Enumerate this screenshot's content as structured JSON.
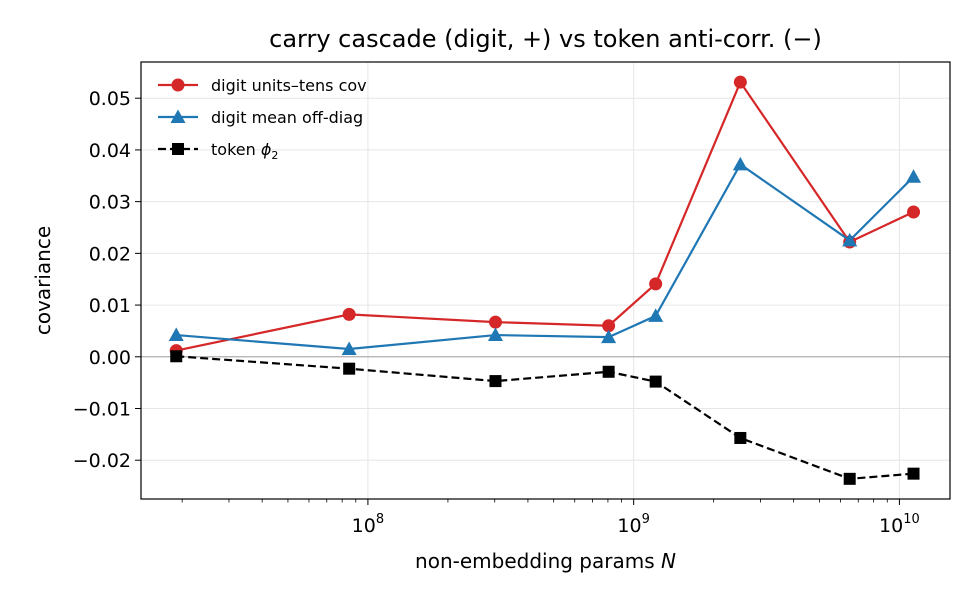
{
  "chart_data": {
    "type": "line",
    "title": "carry cascade (digit, +) vs token anti-corr. (−)",
    "xlabel": "non-embedding params N",
    "ylabel": "covariance",
    "x_scale": "log",
    "xlim": [
      14000000,
      15500000000
    ],
    "ylim": [
      -0.0275,
      0.057
    ],
    "grid": true,
    "legend_position": "upper-left",
    "x": [
      19000000,
      85000000,
      302000000,
      805000000,
      1210000000,
      2520000000,
      6500000000,
      11300000000
    ],
    "x_ticks": [
      {
        "value": 100000000,
        "base": "10",
        "exp": "8"
      },
      {
        "value": 1000000000,
        "base": "10",
        "exp": "9"
      },
      {
        "value": 10000000000,
        "base": "10",
        "exp": "10"
      }
    ],
    "y_ticks": [
      {
        "value": 0.05,
        "label": "0.05"
      },
      {
        "value": 0.04,
        "label": "0.04"
      },
      {
        "value": 0.03,
        "label": "0.03"
      },
      {
        "value": 0.02,
        "label": "0.02"
      },
      {
        "value": 0.01,
        "label": "0.01"
      },
      {
        "value": 0.0,
        "label": "0.00"
      },
      {
        "value": -0.01,
        "label": "−0.01"
      },
      {
        "value": -0.02,
        "label": "−0.02"
      }
    ],
    "series": [
      {
        "name": "digit units–tens cov",
        "color": "#d62728",
        "marker": "circle",
        "dash": "solid",
        "values": [
          0.0012,
          0.0082,
          0.0067,
          0.006,
          0.0141,
          0.0531,
          0.0222,
          0.028
        ]
      },
      {
        "name": "digit mean off-diag",
        "color": "#1f77b4",
        "marker": "triangle",
        "dash": "solid",
        "values": [
          0.0042,
          0.0015,
          0.0042,
          0.0038,
          0.0079,
          0.0372,
          0.0225,
          0.0348
        ]
      },
      {
        "name": "token ϕ₂",
        "color": "#000000",
        "marker": "square",
        "dash": "dashed",
        "values": [
          0.0001,
          -0.0023,
          -0.0047,
          -0.0029,
          -0.0048,
          -0.0157,
          -0.0236,
          -0.0226
        ]
      }
    ]
  }
}
